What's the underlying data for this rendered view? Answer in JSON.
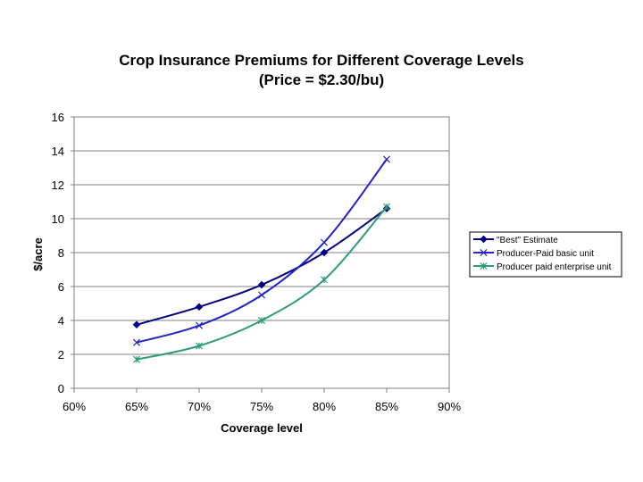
{
  "chart_data": {
    "type": "line",
    "title": "Crop Insurance Premiums for Different Coverage Levels",
    "subtitle": "(Price = $2.30/bu)",
    "xlabel": "Coverage level",
    "ylabel": "$/acre",
    "x_ticks": [
      "60%",
      "65%",
      "70%",
      "75%",
      "80%",
      "85%",
      "90%"
    ],
    "x_values": [
      60,
      65,
      70,
      75,
      80,
      85,
      90
    ],
    "xlim": [
      60,
      90
    ],
    "y_ticks": [
      "0",
      "2",
      "4",
      "6",
      "8",
      "10",
      "12",
      "14",
      "16"
    ],
    "ylim": [
      0,
      16
    ],
    "grid": true,
    "legend_position": "right",
    "series": [
      {
        "name": "\"Best\" Estimate",
        "marker": "diamond",
        "color": "#000080",
        "x": [
          65,
          70,
          75,
          80,
          85
        ],
        "values": [
          3.75,
          4.8,
          6.1,
          8.0,
          10.6
        ]
      },
      {
        "name": "Producer-Paid basic unit",
        "marker": "x",
        "color": "#2323c8",
        "x": [
          65,
          70,
          75,
          80,
          85
        ],
        "values": [
          2.7,
          3.7,
          5.5,
          8.6,
          13.5
        ]
      },
      {
        "name": "Producer paid enterprise unit",
        "marker": "asterisk",
        "color": "#2e9c7c",
        "x": [
          65,
          70,
          75,
          80,
          85
        ],
        "values": [
          1.7,
          2.5,
          4.0,
          6.4,
          10.7
        ]
      }
    ]
  }
}
